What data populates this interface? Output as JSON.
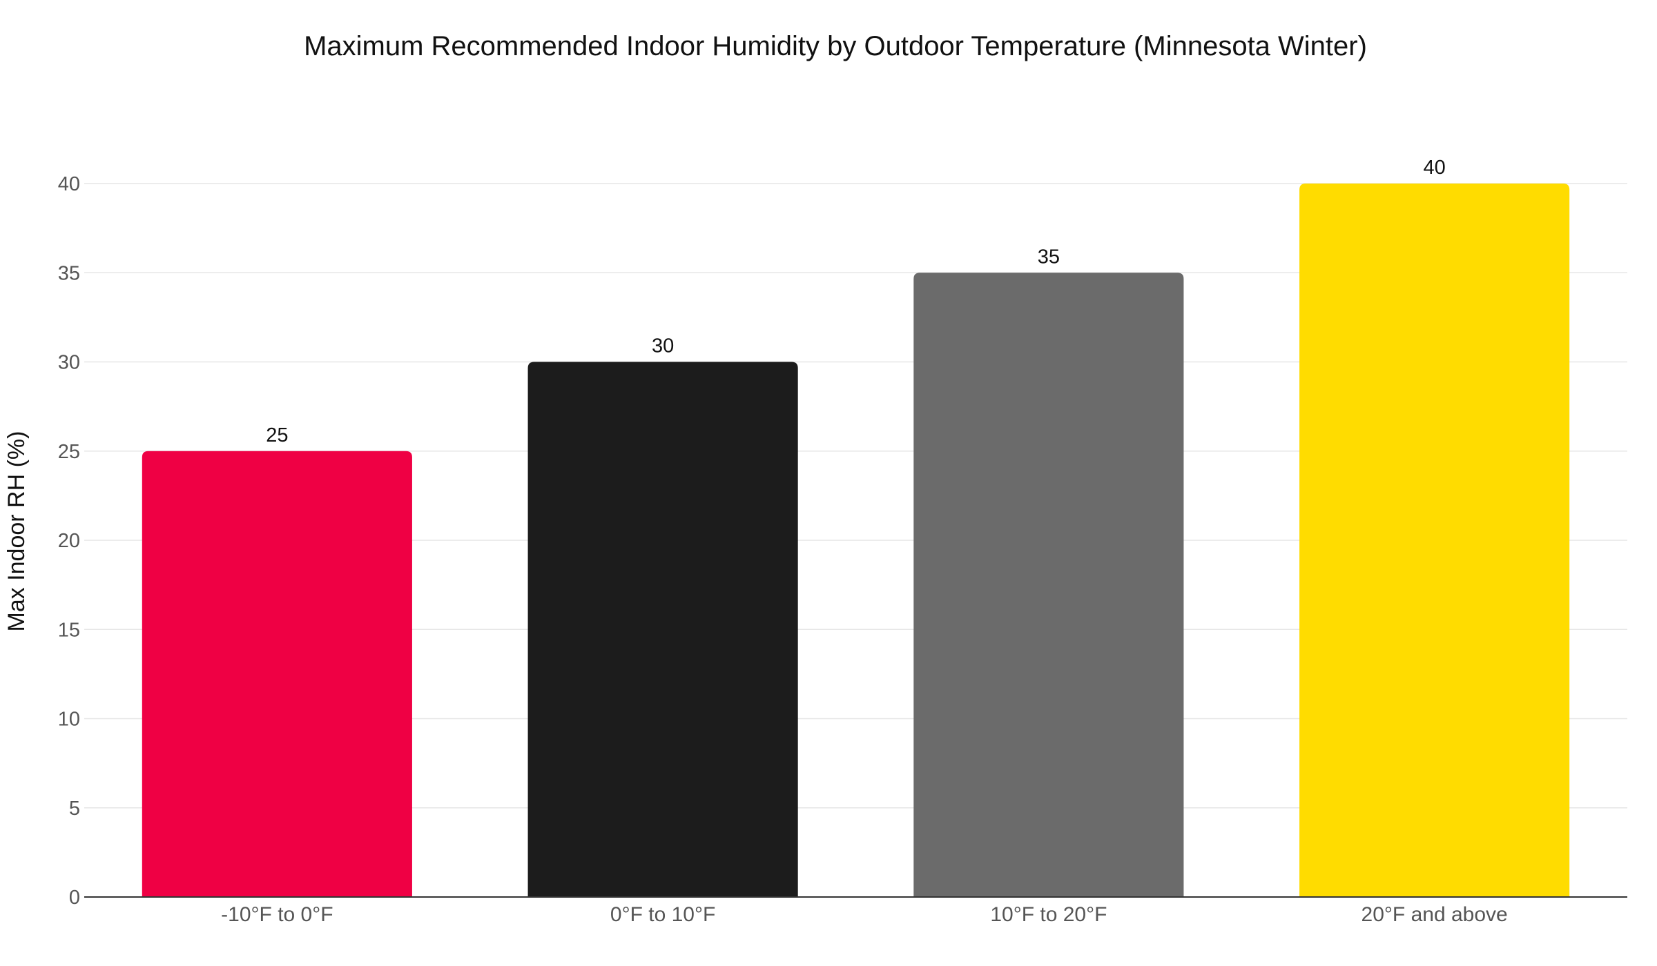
{
  "chart_data": {
    "type": "bar",
    "title": "Maximum Recommended Indoor Humidity by Outdoor Temperature (Minnesota Winter)",
    "xlabel": "",
    "ylabel": "Max Indoor RH (%)",
    "categories": [
      "-10°F to 0°F",
      "0°F to 10°F",
      "10°F to 20°F",
      "20°F and above"
    ],
    "values": [
      25,
      30,
      35,
      40
    ],
    "data_labels": [
      "25",
      "30",
      "35",
      "40"
    ],
    "colors": [
      "#EF0044",
      "#1C1C1C",
      "#6B6B6B",
      "#FFDC00"
    ],
    "ylim": [
      0,
      40
    ],
    "yticks": [
      0,
      5,
      10,
      15,
      20,
      25,
      30,
      35,
      40
    ],
    "ytick_labels": [
      "0",
      "5",
      "10",
      "15",
      "20",
      "25",
      "30",
      "35",
      "40"
    ],
    "grid": true,
    "legend": "none"
  }
}
